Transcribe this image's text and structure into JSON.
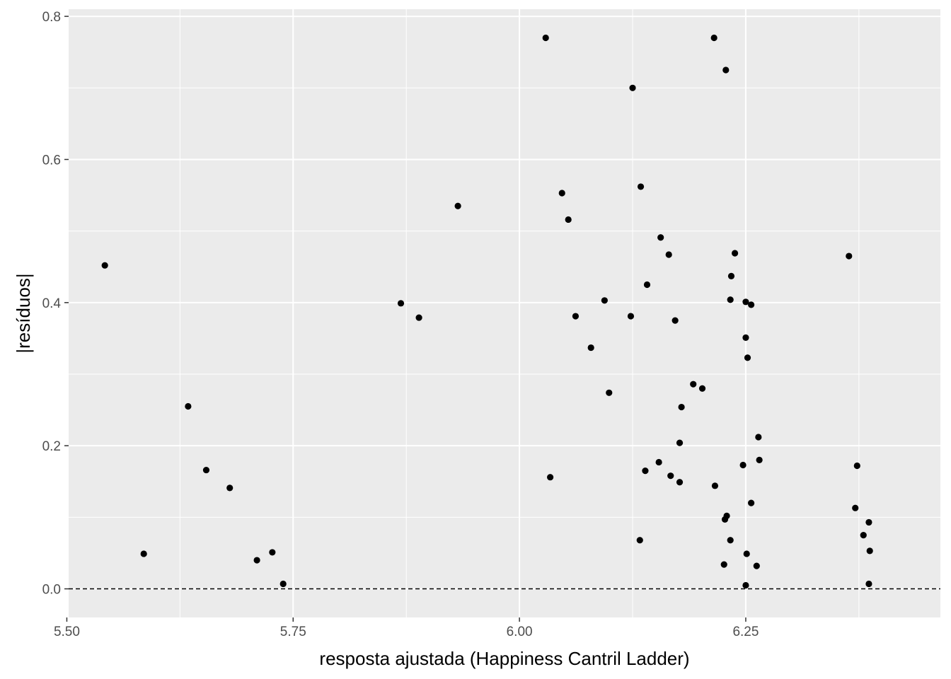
{
  "chart_data": {
    "type": "scatter",
    "xlabel": "resposta ajustada (Happiness Cantril Ladder)",
    "ylabel": "|resíduos|",
    "xlim": [
      5.502,
      6.465
    ],
    "ylim": [
      -0.04,
      0.81
    ],
    "x_ticks": [
      5.5,
      5.75,
      6.0,
      6.25
    ],
    "x_tick_labels": [
      "5.50",
      "5.75",
      "6.00",
      "6.25"
    ],
    "y_ticks": [
      0.0,
      0.2,
      0.4,
      0.6,
      0.8
    ],
    "y_tick_labels": [
      "0.0",
      "0.2",
      "0.4",
      "0.6",
      "0.8"
    ],
    "reference_line": {
      "y": 0,
      "style": "dashed"
    },
    "grid": true,
    "background": "#ebebeb",
    "grid_color": "#ffffff",
    "point_color": "#000000",
    "points": [
      [
        5.542,
        0.452
      ],
      [
        5.585,
        0.049
      ],
      [
        5.634,
        0.255
      ],
      [
        5.654,
        0.166
      ],
      [
        5.68,
        0.141
      ],
      [
        5.71,
        0.04
      ],
      [
        5.727,
        0.051
      ],
      [
        5.739,
        0.007
      ],
      [
        5.869,
        0.399
      ],
      [
        5.889,
        0.379
      ],
      [
        5.932,
        0.535
      ],
      [
        6.029,
        0.77
      ],
      [
        6.034,
        0.156
      ],
      [
        6.047,
        0.553
      ],
      [
        6.054,
        0.516
      ],
      [
        6.062,
        0.381
      ],
      [
        6.079,
        0.337
      ],
      [
        6.094,
        0.403
      ],
      [
        6.099,
        0.274
      ],
      [
        6.123,
        0.381
      ],
      [
        6.125,
        0.7
      ],
      [
        6.133,
        0.068
      ],
      [
        6.134,
        0.562
      ],
      [
        6.139,
        0.165
      ],
      [
        6.141,
        0.425
      ],
      [
        6.154,
        0.177
      ],
      [
        6.156,
        0.491
      ],
      [
        6.165,
        0.467
      ],
      [
        6.167,
        0.158
      ],
      [
        6.172,
        0.375
      ],
      [
        6.177,
        0.204
      ],
      [
        6.177,
        0.149
      ],
      [
        6.179,
        0.254
      ],
      [
        6.192,
        0.286
      ],
      [
        6.202,
        0.28
      ],
      [
        6.215,
        0.77
      ],
      [
        6.216,
        0.144
      ],
      [
        6.226,
        0.034
      ],
      [
        6.227,
        0.097
      ],
      [
        6.228,
        0.725
      ],
      [
        6.229,
        0.102
      ],
      [
        6.233,
        0.404
      ],
      [
        6.233,
        0.068
      ],
      [
        6.234,
        0.437
      ],
      [
        6.238,
        0.469
      ],
      [
        6.247,
        0.173
      ],
      [
        6.25,
        0.351
      ],
      [
        6.25,
        0.005
      ],
      [
        6.25,
        0.401
      ],
      [
        6.251,
        0.049
      ],
      [
        6.252,
        0.323
      ],
      [
        6.256,
        0.397
      ],
      [
        6.256,
        0.12
      ],
      [
        6.262,
        0.032
      ],
      [
        6.264,
        0.212
      ],
      [
        6.265,
        0.18
      ],
      [
        6.364,
        0.465
      ],
      [
        6.371,
        0.113
      ],
      [
        6.373,
        0.172
      ],
      [
        6.38,
        0.075
      ],
      [
        6.386,
        0.007
      ],
      [
        6.386,
        0.093
      ],
      [
        6.387,
        0.053
      ]
    ]
  }
}
